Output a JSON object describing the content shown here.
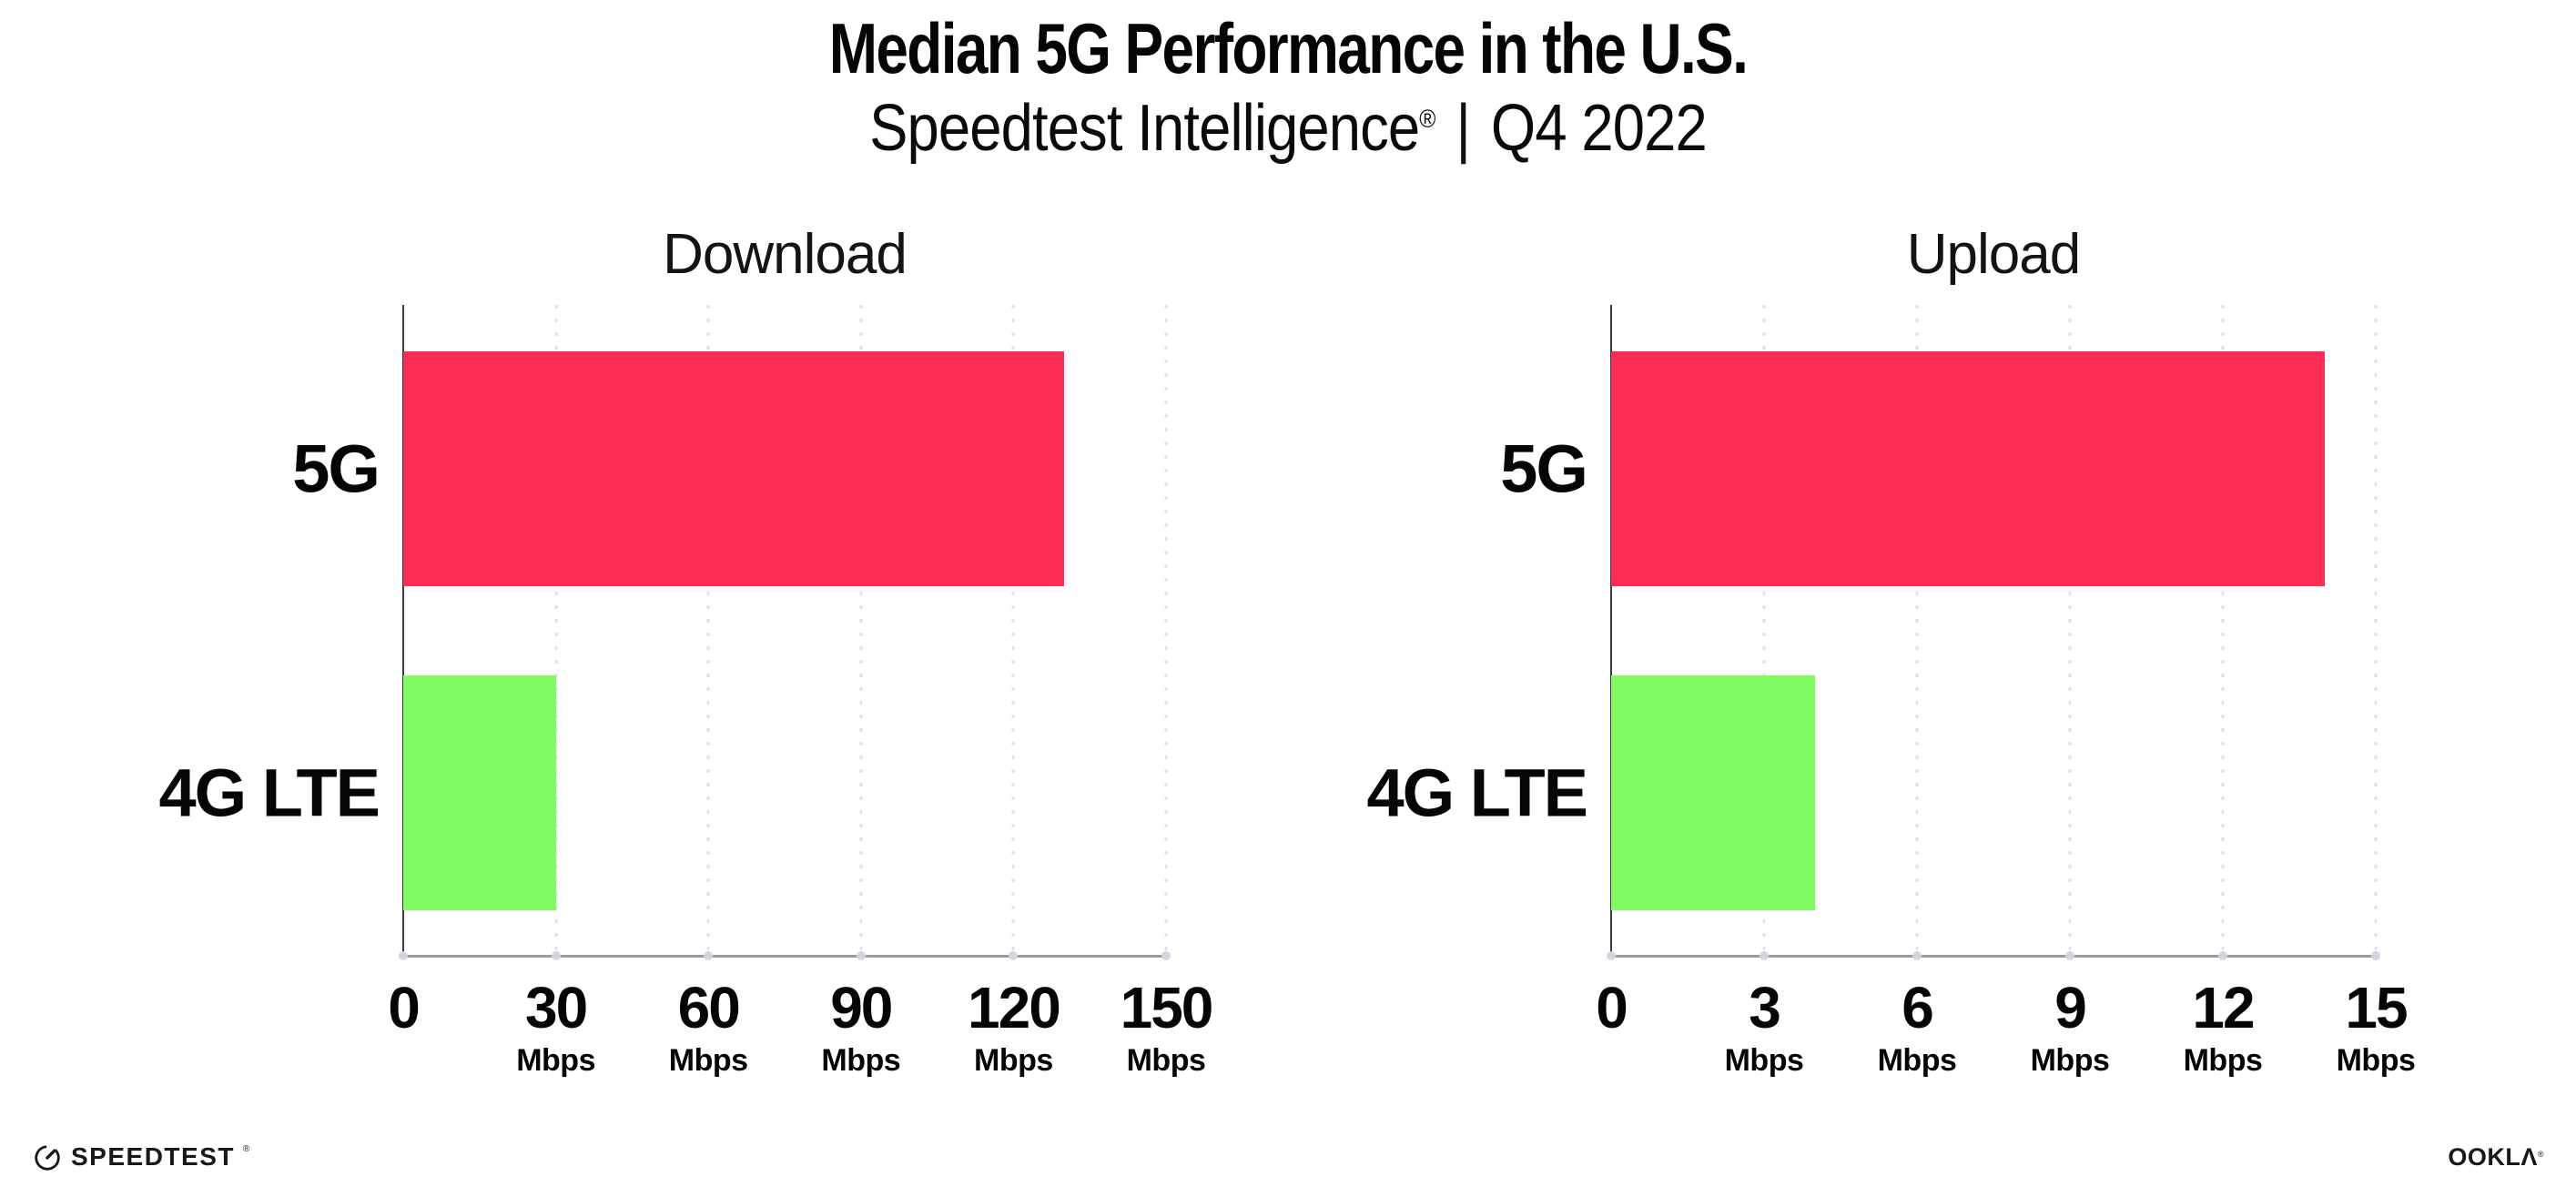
{
  "header": {
    "title": "Median 5G Performance in the U.S.",
    "subtitle_brand": "Speedtest Intelligence",
    "subtitle_reg": "®",
    "subtitle_sep": "|",
    "subtitle_period": "Q4 2022"
  },
  "colors": {
    "bar_5g": "#FC2C57",
    "bar_4g_lte": "#80FB62",
    "gridline": "#e0e1eb",
    "x_axis": "#9a9aa0",
    "y_axis": "#3a3a40",
    "tick_dot": "#d5d5df",
    "text": "#050505"
  },
  "chart_data": [
    {
      "type": "bar",
      "orientation": "horizontal",
      "title": "Download",
      "categories": [
        "5G",
        "4G LTE"
      ],
      "values": [
        130,
        30
      ],
      "unit": "Mbps",
      "xlim": [
        0,
        150
      ],
      "xticks": [
        0,
        30,
        60,
        90,
        120,
        150
      ],
      "tick_unit_label": "Mbps",
      "zero_tick_has_unit": false,
      "grid": "dotted-vertical",
      "legend": "none",
      "bar_colors": [
        "#FC2C57",
        "#80FB62"
      ]
    },
    {
      "type": "bar",
      "orientation": "horizontal",
      "title": "Upload",
      "categories": [
        "5G",
        "4G LTE"
      ],
      "values": [
        14,
        4
      ],
      "unit": "Mbps",
      "xlim": [
        0,
        15
      ],
      "xticks": [
        0,
        3,
        6,
        9,
        12,
        15
      ],
      "tick_unit_label": "Mbps",
      "zero_tick_has_unit": false,
      "grid": "dotted-vertical",
      "legend": "none",
      "bar_colors": [
        "#FC2C57",
        "#80FB62"
      ]
    }
  ],
  "footer": {
    "speedtest_label": "SPEEDTEST",
    "speedtest_reg": "®",
    "ookla_label": "OOKLA",
    "ookla_reg": "®"
  }
}
